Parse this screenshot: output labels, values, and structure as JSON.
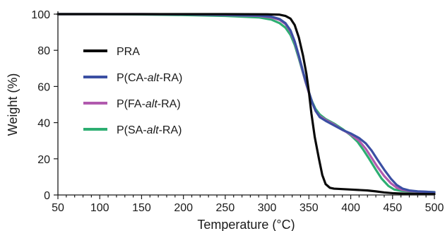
{
  "chart_data": {
    "type": "line",
    "title": "",
    "xlabel": "Temperature (°C)",
    "ylabel": "Weight (%)",
    "xlim": [
      50,
      500
    ],
    "ylim": [
      0,
      100
    ],
    "x_ticks": [
      50,
      100,
      150,
      200,
      250,
      300,
      350,
      400,
      450,
      500
    ],
    "y_ticks": [
      0,
      20,
      40,
      60,
      80,
      100
    ],
    "grid": false,
    "legend_position": "center-left",
    "series": [
      {
        "name": "PRA",
        "name_parts": [
          {
            "text": "PRA",
            "italic": false
          }
        ],
        "color": "#0a0a0a",
        "points": [
          [
            50,
            100
          ],
          [
            150,
            100
          ],
          [
            250,
            100
          ],
          [
            300,
            99.9
          ],
          [
            315,
            99.7
          ],
          [
            322,
            99.0
          ],
          [
            328,
            97.5
          ],
          [
            333,
            94.0
          ],
          [
            338,
            87.0
          ],
          [
            343,
            77.0
          ],
          [
            347,
            67.0
          ],
          [
            350,
            57.0
          ],
          [
            353,
            45.0
          ],
          [
            357,
            32.0
          ],
          [
            362,
            20.0
          ],
          [
            366,
            11.0
          ],
          [
            370,
            6.0
          ],
          [
            375,
            4.0
          ],
          [
            380,
            3.5
          ],
          [
            400,
            3.0
          ],
          [
            420,
            2.5
          ],
          [
            430,
            2.0
          ],
          [
            440,
            1.4
          ],
          [
            450,
            1.0
          ],
          [
            460,
            0.8
          ],
          [
            480,
            0.6
          ],
          [
            500,
            0.5
          ]
        ]
      },
      {
        "name": "P(CA-alt-RA)",
        "name_parts": [
          {
            "text": "P(CA-",
            "italic": false
          },
          {
            "text": "alt",
            "italic": true
          },
          {
            "text": "-RA)",
            "italic": false
          }
        ],
        "color": "#3b4fa3",
        "points": [
          [
            50,
            100
          ],
          [
            150,
            100
          ],
          [
            200,
            99.9
          ],
          [
            250,
            99.6
          ],
          [
            290,
            99.2
          ],
          [
            305,
            98.6
          ],
          [
            315,
            97.3
          ],
          [
            322,
            95.0
          ],
          [
            328,
            91.0
          ],
          [
            333,
            85.0
          ],
          [
            338,
            77.0
          ],
          [
            342,
            70.0
          ],
          [
            346,
            63.0
          ],
          [
            350,
            57.0
          ],
          [
            354,
            51.0
          ],
          [
            358,
            46.5
          ],
          [
            363,
            43.0
          ],
          [
            370,
            41.0
          ],
          [
            380,
            38.5
          ],
          [
            390,
            36.0
          ],
          [
            400,
            34.0
          ],
          [
            410,
            31.5
          ],
          [
            418,
            28.5
          ],
          [
            425,
            24.5
          ],
          [
            432,
            19.5
          ],
          [
            440,
            14.0
          ],
          [
            448,
            9.0
          ],
          [
            455,
            5.5
          ],
          [
            462,
            3.5
          ],
          [
            470,
            2.5
          ],
          [
            480,
            2.0
          ],
          [
            490,
            1.8
          ],
          [
            500,
            1.5
          ]
        ]
      },
      {
        "name": "P(FA-alt-RA)",
        "name_parts": [
          {
            "text": "P(FA-",
            "italic": false
          },
          {
            "text": "alt",
            "italic": true
          },
          {
            "text": "-RA)",
            "italic": false
          }
        ],
        "color": "#b15aae",
        "points": [
          [
            50,
            100
          ],
          [
            150,
            100
          ],
          [
            200,
            99.9
          ],
          [
            250,
            99.5
          ],
          [
            290,
            99.0
          ],
          [
            305,
            98.2
          ],
          [
            315,
            96.8
          ],
          [
            322,
            94.5
          ],
          [
            328,
            90.5
          ],
          [
            333,
            84.5
          ],
          [
            338,
            76.5
          ],
          [
            342,
            69.5
          ],
          [
            346,
            62.5
          ],
          [
            350,
            56.5
          ],
          [
            354,
            51.0
          ],
          [
            358,
            46.5
          ],
          [
            363,
            43.5
          ],
          [
            370,
            41.5
          ],
          [
            380,
            39.0
          ],
          [
            390,
            36.0
          ],
          [
            400,
            33.5
          ],
          [
            410,
            30.0
          ],
          [
            418,
            25.5
          ],
          [
            425,
            20.5
          ],
          [
            432,
            15.5
          ],
          [
            440,
            10.5
          ],
          [
            448,
            6.5
          ],
          [
            455,
            4.0
          ],
          [
            462,
            2.8
          ],
          [
            470,
            2.2
          ],
          [
            480,
            1.9
          ],
          [
            490,
            1.6
          ],
          [
            500,
            1.5
          ]
        ]
      },
      {
        "name": "P(SA-alt-RA)",
        "name_parts": [
          {
            "text": "P(SA-",
            "italic": false
          },
          {
            "text": "alt",
            "italic": true
          },
          {
            "text": "-RA)",
            "italic": false
          }
        ],
        "color": "#2dae72",
        "points": [
          [
            50,
            100
          ],
          [
            100,
            100
          ],
          [
            150,
            99.8
          ],
          [
            200,
            99.5
          ],
          [
            250,
            99.0
          ],
          [
            290,
            98.2
          ],
          [
            305,
            97.0
          ],
          [
            315,
            95.0
          ],
          [
            322,
            92.5
          ],
          [
            328,
            88.5
          ],
          [
            333,
            83.0
          ],
          [
            338,
            75.5
          ],
          [
            342,
            69.0
          ],
          [
            346,
            62.5
          ],
          [
            350,
            56.5
          ],
          [
            354,
            51.5
          ],
          [
            358,
            47.5
          ],
          [
            363,
            44.5
          ],
          [
            370,
            42.0
          ],
          [
            380,
            39.5
          ],
          [
            390,
            36.5
          ],
          [
            400,
            33.0
          ],
          [
            408,
            29.5
          ],
          [
            415,
            25.0
          ],
          [
            422,
            20.0
          ],
          [
            430,
            14.0
          ],
          [
            437,
            9.0
          ],
          [
            445,
            5.0
          ],
          [
            452,
            3.0
          ],
          [
            460,
            2.3
          ],
          [
            470,
            2.0
          ],
          [
            480,
            1.8
          ],
          [
            490,
            1.7
          ],
          [
            500,
            1.6
          ]
        ]
      }
    ]
  }
}
